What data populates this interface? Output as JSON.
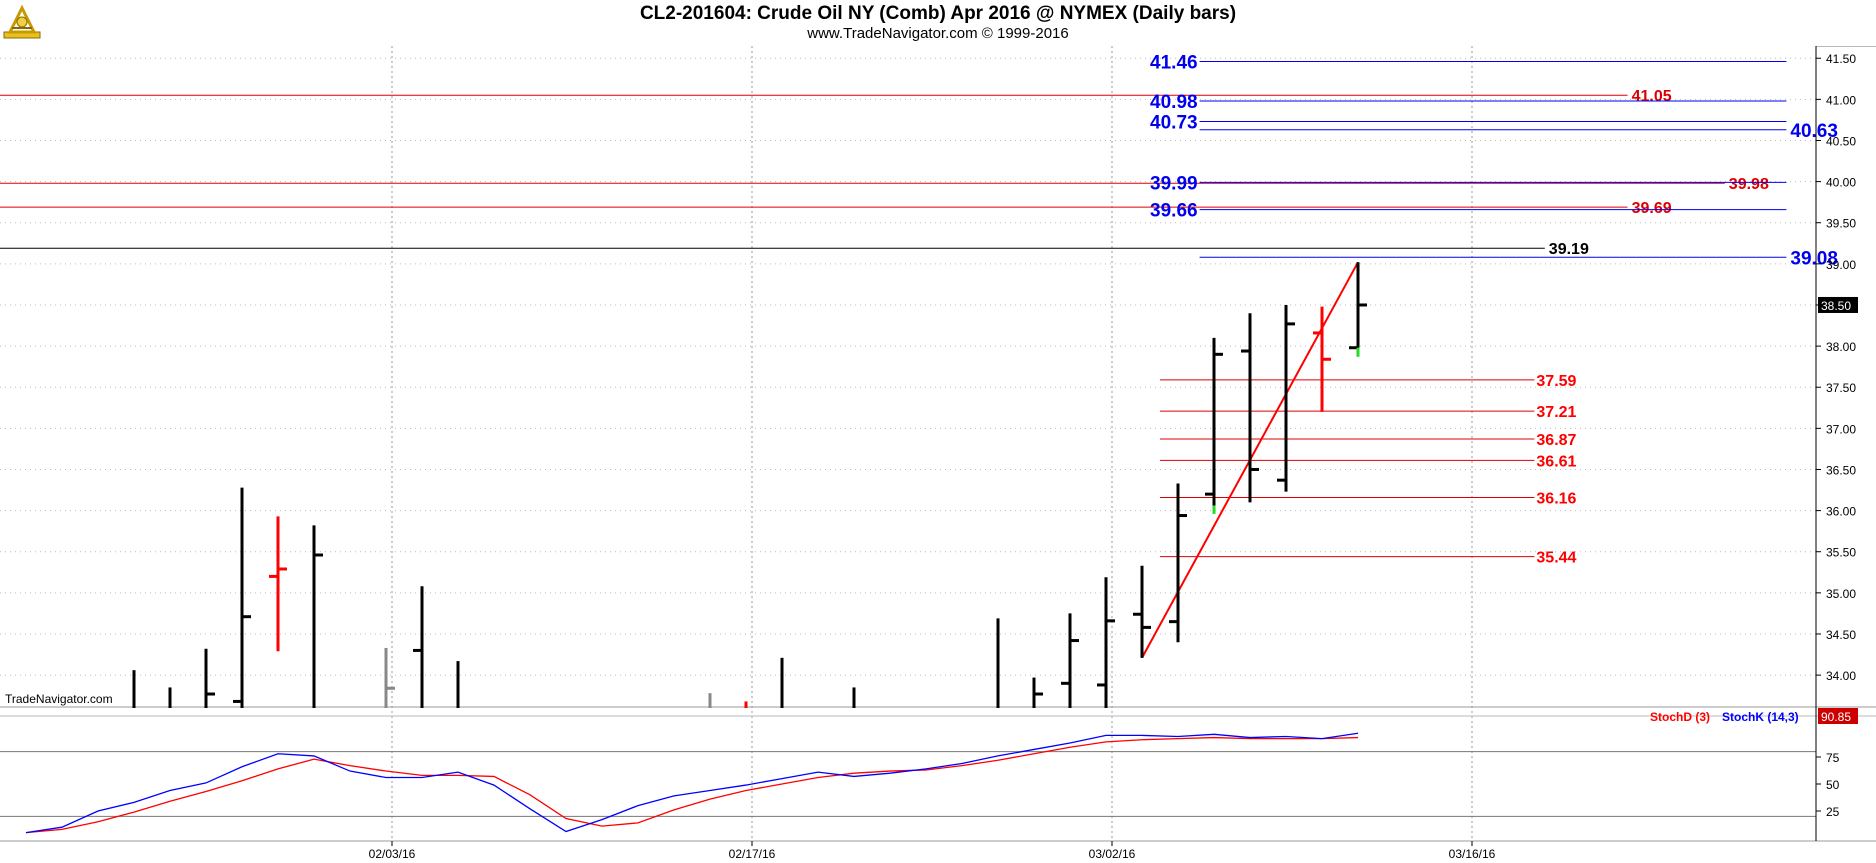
{
  "header": {
    "title": "CL2-201604:  Crude Oil NY (Comb) Apr 2016 @ NYMEX  (Daily bars)",
    "subtitle": "www.TradeNavigator.com © 1999-2016"
  },
  "watermark": "TradeNavigator.com",
  "icons": {
    "logo": "sextant-logo-icon"
  },
  "colors": {
    "up": "#000000",
    "down": "#ff0000",
    "fib_red": "#dd0000",
    "fib_blue": "#0000ee",
    "stoch_d": "#ff0000",
    "stoch_k": "#0000ff",
    "grid": "#999999",
    "current_bg": "#000000"
  },
  "chart_data": [
    {
      "type": "ohlc",
      "title": "CL2-201604:  Crude Oil NY (Comb) Apr 2016 @ NYMEX  (Daily bars)",
      "ylim": [
        33.6,
        41.6
      ],
      "y_ticks": [
        "41.50",
        "41.00",
        "40.50",
        "40.00",
        "39.50",
        "39.00",
        "38.50",
        "38.00",
        "37.50",
        "37.00",
        "36.50",
        "36.00",
        "35.50",
        "35.00",
        "34.50",
        "34.00"
      ],
      "x_ticks": [
        {
          "index": 10,
          "label": "02/03/16"
        },
        {
          "index": 20,
          "label": "02/17/16"
        },
        {
          "index": 30,
          "label": "03/02/16"
        },
        {
          "index": 40,
          "label": "03/16/16"
        }
      ],
      "last_price_label": "38.50",
      "bars": [
        {
          "i": 3,
          "open": null,
          "high": 34.06,
          "low": 33.6,
          "close": null,
          "color": "black"
        },
        {
          "i": 4,
          "open": null,
          "high": 33.85,
          "low": 33.6,
          "close": null,
          "color": "black"
        },
        {
          "i": 5,
          "open": null,
          "high": 34.32,
          "low": 33.6,
          "close": 33.77,
          "color": "black"
        },
        {
          "i": 6,
          "open": 33.68,
          "high": 36.28,
          "low": 33.6,
          "close": 34.71,
          "color": "black"
        },
        {
          "i": 7,
          "open": 35.2,
          "high": 35.93,
          "low": 34.29,
          "close": 35.29,
          "color": "red"
        },
        {
          "i": 8,
          "open": null,
          "high": 35.82,
          "low": 33.6,
          "close": 35.46,
          "color": "black"
        },
        {
          "i": 10,
          "open": null,
          "high": 34.33,
          "low": 33.6,
          "close": 33.84,
          "color": "gray"
        },
        {
          "i": 11,
          "open": 34.3,
          "high": 35.08,
          "low": 33.6,
          "close": null,
          "color": "black"
        },
        {
          "i": 12,
          "open": null,
          "high": 34.17,
          "low": 33.6,
          "close": null,
          "color": "black"
        },
        {
          "i": 19,
          "open": null,
          "high": 33.78,
          "low": 33.6,
          "close": null,
          "color": "gray"
        },
        {
          "i": 20,
          "open": null,
          "high": 33.68,
          "low": 33.6,
          "close": null,
          "color": "red"
        },
        {
          "i": 21,
          "open": null,
          "high": 34.21,
          "low": 33.6,
          "close": null,
          "color": "black"
        },
        {
          "i": 23,
          "open": null,
          "high": 33.85,
          "low": 33.6,
          "close": null,
          "color": "black"
        },
        {
          "i": 27,
          "open": null,
          "high": 34.69,
          "low": 33.6,
          "close": null,
          "color": "black"
        },
        {
          "i": 28,
          "open": null,
          "high": 33.97,
          "low": 33.6,
          "close": 33.77,
          "color": "black"
        },
        {
          "i": 29,
          "open": 33.9,
          "high": 34.75,
          "low": 33.6,
          "close": 34.42,
          "color": "black"
        },
        {
          "i": 30,
          "open": 33.88,
          "high": 35.19,
          "low": 33.6,
          "close": 34.66,
          "color": "black"
        },
        {
          "i": 31,
          "open": 34.74,
          "high": 35.33,
          "low": 34.21,
          "close": 34.58,
          "color": "black"
        },
        {
          "i": 32,
          "open": 34.65,
          "high": 36.33,
          "low": 34.4,
          "close": 35.94,
          "color": "black"
        },
        {
          "i": 33,
          "open": 36.2,
          "high": 38.1,
          "low": 36.06,
          "close": 37.9,
          "color": "black"
        },
        {
          "i": 34,
          "open": 37.94,
          "high": 38.4,
          "low": 36.1,
          "close": 36.5,
          "color": "black"
        },
        {
          "i": 35,
          "open": 36.37,
          "high": 38.5,
          "low": 36.23,
          "close": 38.27,
          "color": "black"
        },
        {
          "i": 36,
          "open": 38.16,
          "high": 38.48,
          "low": 37.2,
          "close": 37.84,
          "color": "red"
        },
        {
          "i": 37,
          "open": 37.98,
          "high": 39.02,
          "low": 37.98,
          "close": 38.5,
          "color": "black"
        }
      ],
      "green_marks": [
        {
          "i": 33,
          "from": 35.96,
          "to": 36.06
        },
        {
          "i": 37,
          "from": 37.87,
          "to": 37.98
        }
      ],
      "trend_line": {
        "from": {
          "i": 31.0,
          "value": 34.21
        },
        "to": {
          "i": 37.0,
          "value": 39.02
        }
      },
      "red_h_lines": [
        {
          "value": 41.05,
          "label": "41.05",
          "label_i": 44.6
        },
        {
          "value": 39.98,
          "label": "39.98",
          "label_i": 47.3
        },
        {
          "value": 39.69,
          "label": "39.69",
          "label_i": 44.6
        }
      ],
      "black_h_line": {
        "value": 39.19,
        "label": "39.19",
        "label_i": 42.3
      },
      "blue_h_lines": [
        {
          "value": 41.46,
          "label": "41.46",
          "side": "left"
        },
        {
          "value": 40.98,
          "label": "40.98",
          "side": "left"
        },
        {
          "value": 40.73,
          "label": "40.73",
          "side": "left"
        },
        {
          "value": 40.63,
          "label": "40.63",
          "side": "right"
        },
        {
          "value": 39.99,
          "label": "39.99",
          "side": "left"
        },
        {
          "value": 39.66,
          "label": "39.66",
          "side": "left"
        },
        {
          "value": 39.08,
          "label": "39.08",
          "side": "right"
        }
      ],
      "retracement_levels": [
        {
          "value": 37.59,
          "label": "37.59"
        },
        {
          "value": 37.21,
          "label": "37.21"
        },
        {
          "value": 36.87,
          "label": "36.87"
        },
        {
          "value": 36.61,
          "label": "36.61"
        },
        {
          "value": 36.16,
          "label": "36.16"
        },
        {
          "value": 35.44,
          "label": "35.44"
        }
      ]
    },
    {
      "type": "line",
      "title": "",
      "ylim": [
        0,
        100
      ],
      "y_ticks": [
        "75",
        "50",
        "25"
      ],
      "reference_lines": [
        80,
        20
      ],
      "last_value_label": "90.85",
      "series": [
        {
          "name": "StochD (3)",
          "color": "#ff0000",
          "x": [
            0,
            1,
            2,
            3,
            4,
            5,
            6,
            7,
            8,
            9,
            10,
            11,
            12,
            13,
            14,
            15,
            16,
            17,
            18,
            19,
            20,
            21,
            22,
            23,
            24,
            25,
            26,
            27,
            28,
            29,
            30,
            31,
            32,
            33,
            34,
            35,
            36,
            37
          ],
          "values": [
            5,
            8,
            15,
            24,
            34,
            43,
            53,
            64,
            73,
            67,
            62,
            58,
            58,
            57,
            40,
            18,
            11,
            14,
            26,
            36,
            44,
            50,
            56,
            60,
            62,
            63,
            67,
            72,
            78,
            84,
            89,
            91,
            92,
            93,
            92,
            92,
            92,
            93
          ]
        },
        {
          "name": "StochK (14,3)",
          "color": "#0000ff",
          "x": [
            0,
            1,
            2,
            3,
            4,
            5,
            6,
            7,
            8,
            9,
            10,
            11,
            12,
            13,
            14,
            15,
            16,
            17,
            18,
            19,
            20,
            21,
            22,
            23,
            24,
            25,
            26,
            27,
            28,
            29,
            30,
            31,
            32,
            33,
            34,
            35,
            36,
            37
          ],
          "values": [
            5,
            10,
            25,
            33,
            44,
            51,
            66,
            78,
            76,
            62,
            56,
            56,
            61,
            49,
            27,
            6,
            17,
            30,
            39,
            44,
            49,
            55,
            61,
            57,
            60,
            64,
            69,
            76,
            82,
            88,
            95,
            95,
            94,
            96,
            93,
            94,
            92,
            97
          ]
        }
      ]
    }
  ]
}
